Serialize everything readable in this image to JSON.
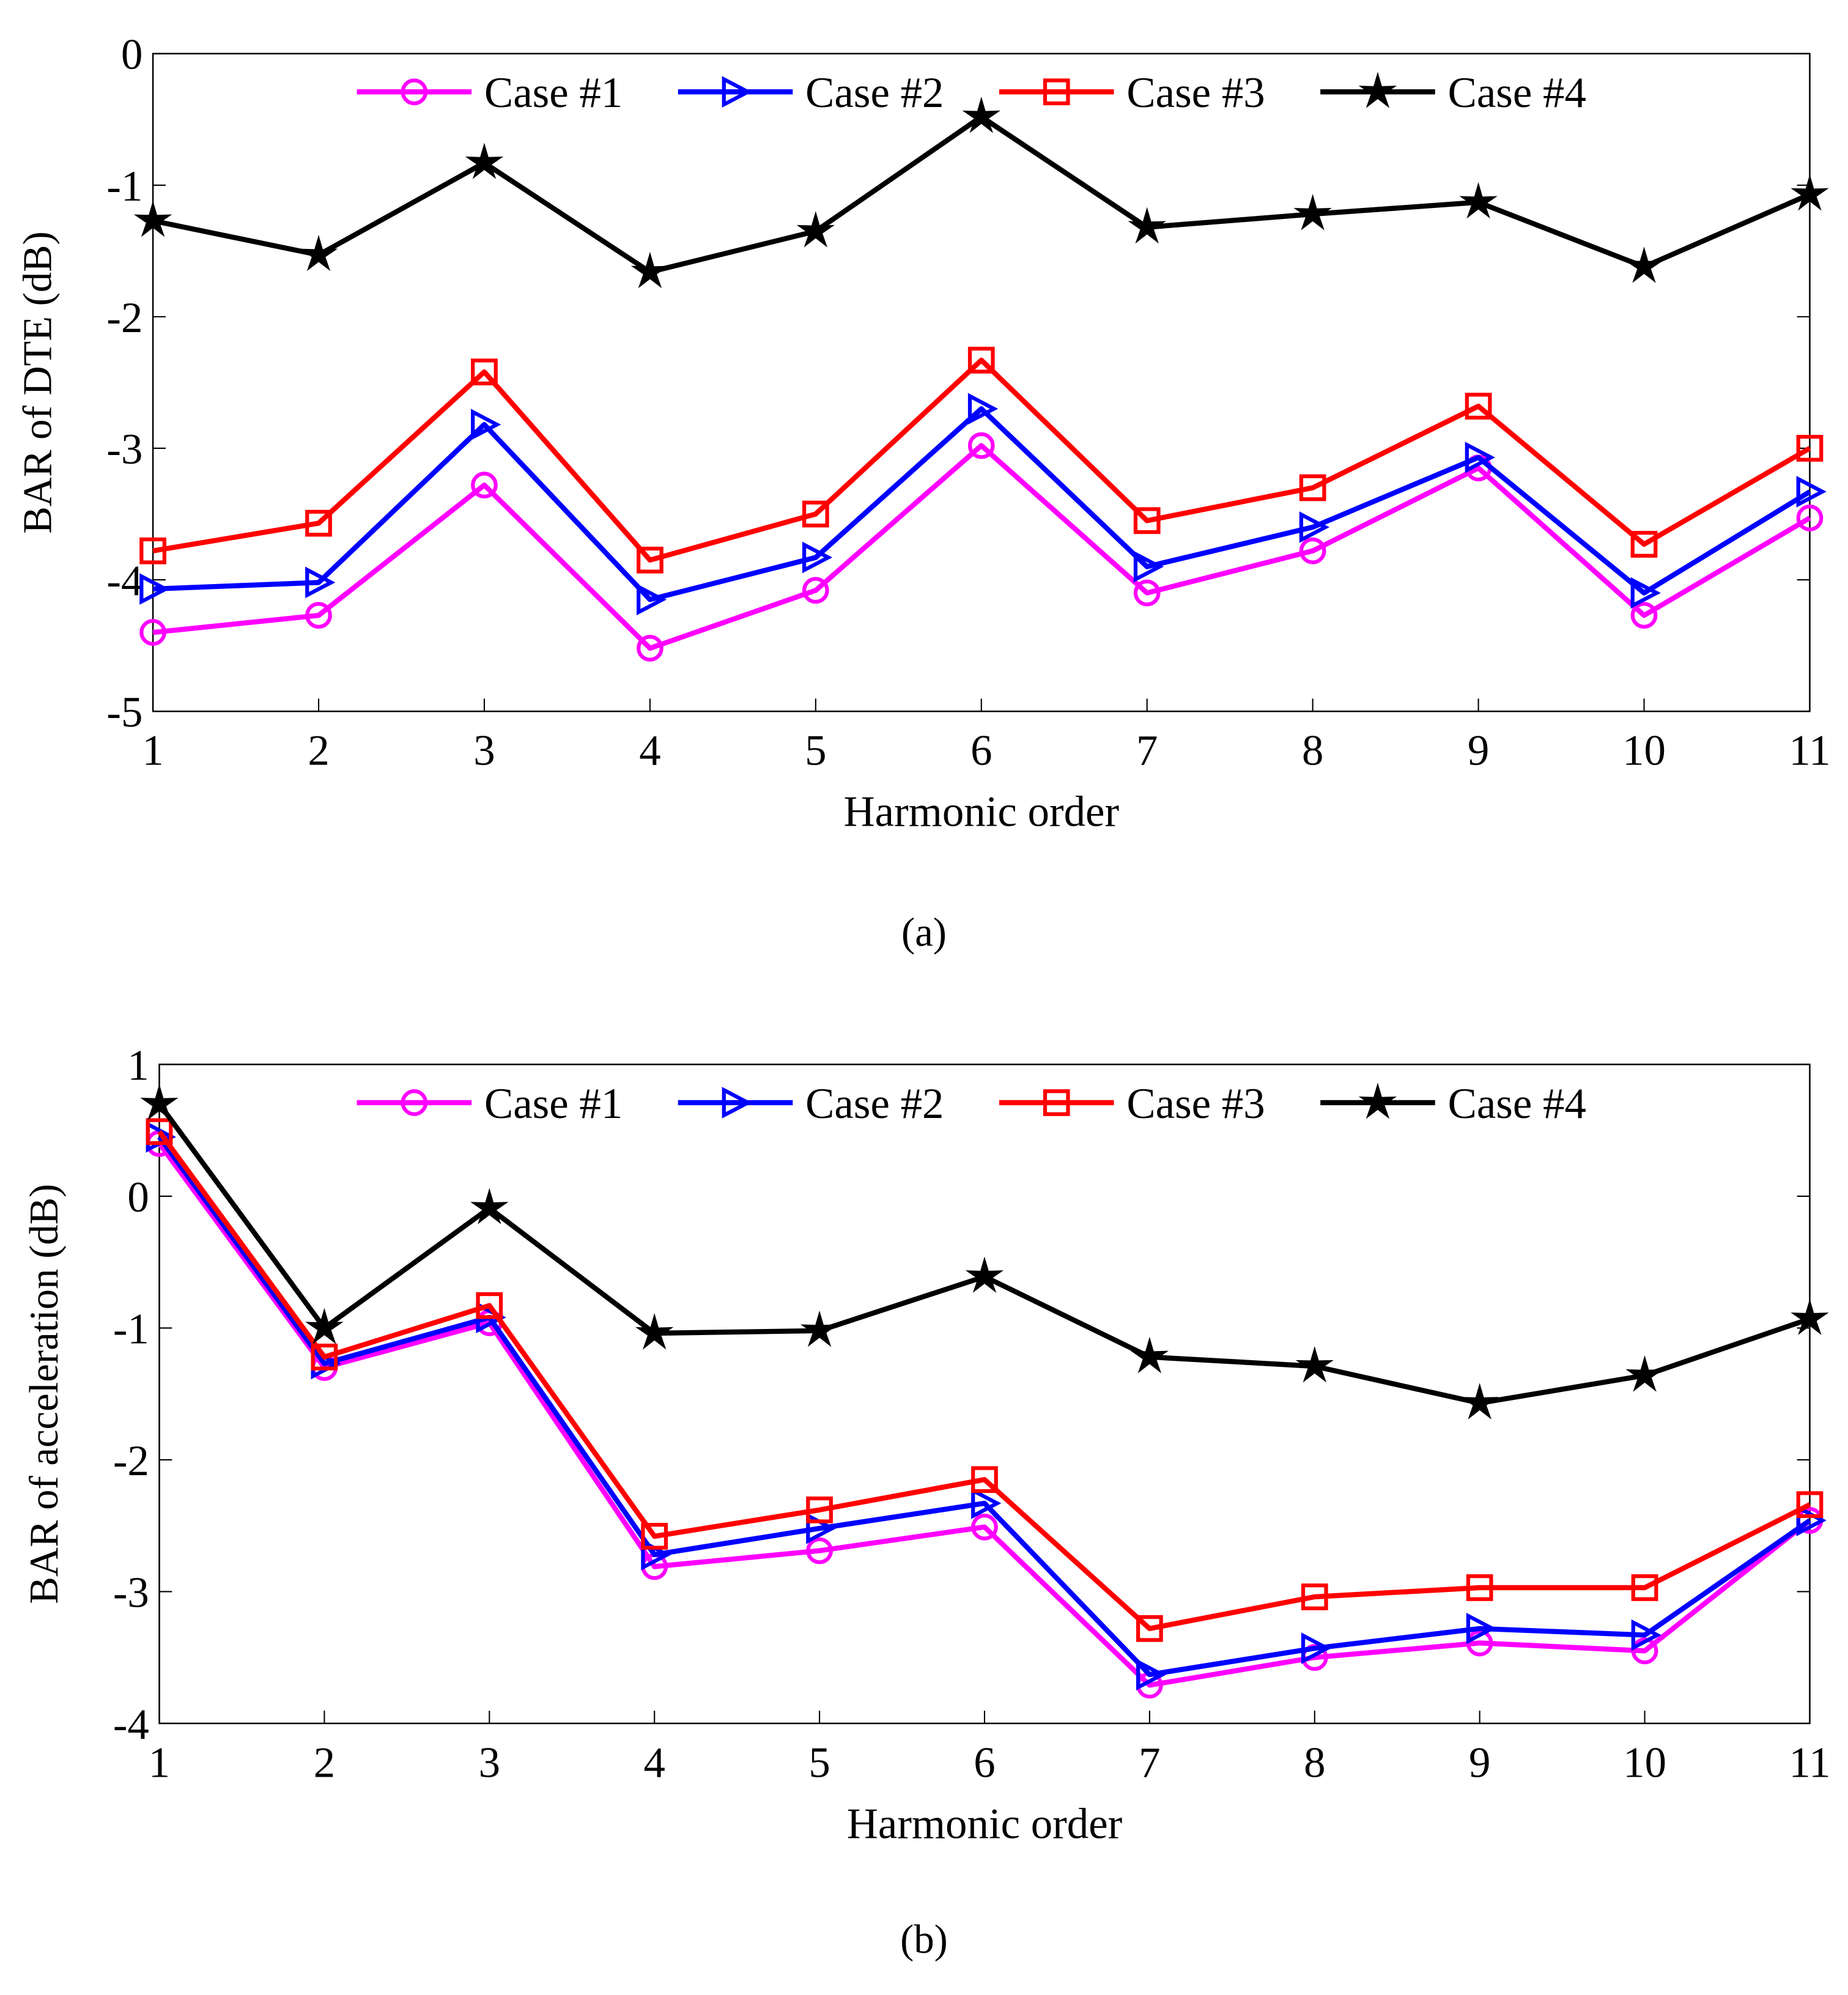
{
  "chart_data": [
    {
      "type": "line",
      "caption": "(a)",
      "caption_letter": "a",
      "xlabel": "Harmonic order",
      "ylabel": "BAR of DTE (dB)",
      "x": [
        1,
        2,
        3,
        4,
        5,
        6,
        7,
        8,
        9,
        10,
        11
      ],
      "xticks": [
        "1",
        "2",
        "3",
        "4",
        "5",
        "6",
        "7",
        "8",
        "9",
        "10",
        "11"
      ],
      "yticks": [
        "0",
        "-1",
        "-2",
        "-3",
        "-4",
        "-5"
      ],
      "ylim": [
        -5,
        0
      ],
      "legend_position": "top",
      "series": [
        {
          "name": "Case #1",
          "color": "#ff00ff",
          "marker": "circle",
          "values": [
            -4.4,
            -4.27,
            -3.28,
            -4.52,
            -4.08,
            -2.98,
            -4.1,
            -3.78,
            -3.15,
            -4.27,
            -3.53
          ]
        },
        {
          "name": "Case #2",
          "color": "#0000ff",
          "marker": "triangle-right",
          "values": [
            -4.07,
            -4.02,
            -2.82,
            -4.15,
            -3.83,
            -2.7,
            -3.9,
            -3.6,
            -3.07,
            -4.1,
            -3.33
          ]
        },
        {
          "name": "Case #3",
          "color": "#ff0000",
          "marker": "square",
          "values": [
            -3.78,
            -3.57,
            -2.42,
            -3.85,
            -3.5,
            -2.33,
            -3.55,
            -3.3,
            -2.68,
            -3.73,
            -3.0
          ]
        },
        {
          "name": "Case #4",
          "color": "#000000",
          "marker": "star",
          "values": [
            -1.27,
            -1.53,
            -0.83,
            -1.66,
            -1.35,
            -0.48,
            -1.32,
            -1.22,
            -1.13,
            -1.62,
            -1.07
          ]
        }
      ]
    },
    {
      "type": "line",
      "caption": "(b)",
      "caption_letter": "b",
      "xlabel": "Harmonic order",
      "ylabel": "BAR of acceleration (dB)",
      "x": [
        1,
        2,
        3,
        4,
        5,
        6,
        7,
        8,
        9,
        10,
        11
      ],
      "xticks": [
        "1",
        "2",
        "3",
        "4",
        "5",
        "6",
        "7",
        "8",
        "9",
        "10",
        "11"
      ],
      "yticks": [
        "1",
        "0",
        "-1",
        "-2",
        "-3",
        "-4"
      ],
      "ylim": [
        -4,
        1
      ],
      "legend_position": "top",
      "series": [
        {
          "name": "Case #1",
          "color": "#ff00ff",
          "marker": "circle",
          "values": [
            0.4,
            -1.3,
            -0.96,
            -2.81,
            -2.69,
            -2.51,
            -3.71,
            -3.5,
            -3.39,
            -3.45,
            -2.46
          ]
        },
        {
          "name": "Case #2",
          "color": "#0000ff",
          "marker": "triangle-right",
          "values": [
            0.45,
            -1.27,
            -0.92,
            -2.72,
            -2.52,
            -2.33,
            -3.63,
            -3.43,
            -3.28,
            -3.33,
            -2.46
          ]
        },
        {
          "name": "Case #3",
          "color": "#ff0000",
          "marker": "square",
          "values": [
            0.49,
            -1.22,
            -0.83,
            -2.58,
            -2.38,
            -2.15,
            -3.28,
            -3.04,
            -2.97,
            -2.97,
            -2.34
          ]
        },
        {
          "name": "Case #4",
          "color": "#000000",
          "marker": "star",
          "values": [
            0.7,
            -1.0,
            -0.09,
            -1.04,
            -1.02,
            -0.61,
            -1.22,
            -1.29,
            -1.57,
            -1.36,
            -0.93
          ]
        }
      ]
    }
  ]
}
